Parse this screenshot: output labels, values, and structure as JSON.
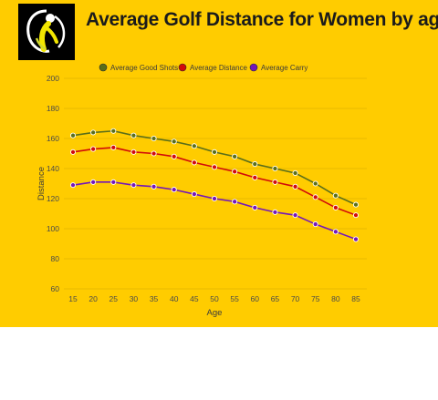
{
  "title": "Average Golf Distance for Women by age",
  "colors": {
    "background": "#FFCC00",
    "grid": "#e0b400",
    "good_shots": "#5a6e1a",
    "distance": "#d10a0a",
    "carry": "#7417b8"
  },
  "chart_data": {
    "type": "line",
    "title": "Average Golf Distance for Women by age",
    "xlabel": "Age",
    "ylabel": "Distance",
    "x": [
      15,
      20,
      25,
      30,
      35,
      40,
      45,
      50,
      55,
      60,
      65,
      70,
      75,
      80,
      85
    ],
    "ylim": [
      60,
      200
    ],
    "yticks": [
      60,
      80,
      100,
      120,
      140,
      160,
      180,
      200
    ],
    "grid": true,
    "legend_position": "top",
    "series": [
      {
        "name": "Average Good Shots",
        "color": "#5a6e1a",
        "values": [
          162,
          164,
          165,
          162,
          160,
          158,
          155,
          151,
          148,
          143,
          140,
          137,
          130,
          122,
          116
        ]
      },
      {
        "name": "Average Distance",
        "color": "#d10a0a",
        "values": [
          151,
          153,
          154,
          151,
          150,
          148,
          144,
          141,
          138,
          134,
          131,
          128,
          121,
          114,
          109
        ]
      },
      {
        "name": "Average Carry",
        "color": "#7417b8",
        "values": [
          129,
          131,
          131,
          129,
          128,
          126,
          123,
          120,
          118,
          114,
          111,
          109,
          103,
          98,
          93
        ]
      }
    ]
  }
}
